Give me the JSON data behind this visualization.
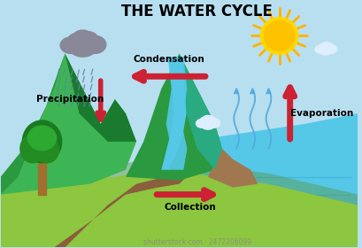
{
  "title": "THE WATER CYCLE",
  "title_fontsize": 12,
  "title_fontweight": "bold",
  "bg_color": "#b8dff0",
  "mountain_left_green1": "#3db554",
  "mountain_left_green2": "#2a9940",
  "mountain_left_green3": "#1a7a2e",
  "mountain_right_green1": "#2a9940",
  "mountain_right_teal": "#2aaa80",
  "mountain_brown": "#a07850",
  "water_color": "#55c8e8",
  "water_dark": "#40b0d8",
  "ground_color": "#8dc63f",
  "ground_dark": "#5a9030",
  "path_color": "#8B5E3C",
  "tree_trunk_color": "#a07030",
  "tree_leaf_dark": "#1a7a20",
  "tree_leaf_mid": "#228b22",
  "tree_leaf_light": "#2da830",
  "cloud_color": "#909090",
  "cloud_white": "#e8f4ff",
  "rain_color": "#6080a8",
  "sun_color": "#FFD700",
  "sun_inner": "#FFC200",
  "arrow_color": "#cc2233",
  "evap_line_color": "#55aadd",
  "label_precipitation": "Precipitation",
  "label_condensation": "Condensation",
  "label_evaporation": "Evaporation",
  "label_collection": "Collection",
  "label_fontsize": 7.5,
  "label_fontweight": "bold",
  "watermark": "shutterstock.com · 2472206099",
  "watermark_fontsize": 5.5
}
